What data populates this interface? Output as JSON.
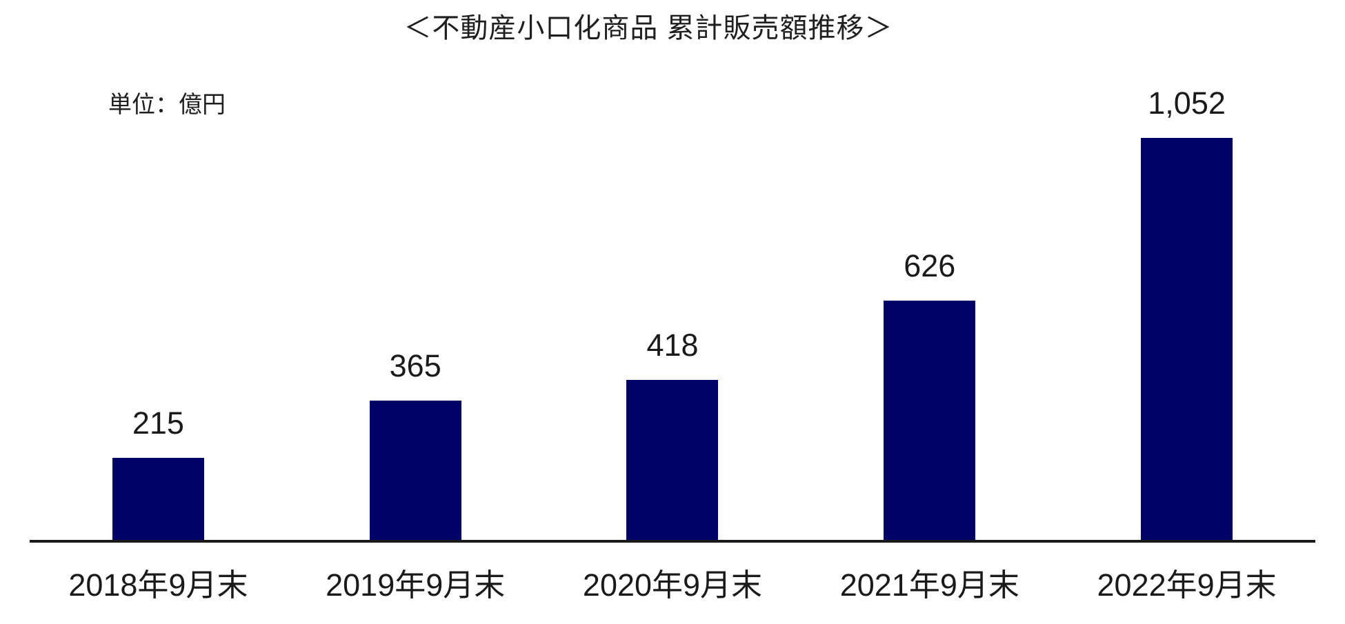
{
  "title": "＜不動産小口化商品 累計販売額推移＞",
  "unit_label": "単位：億円",
  "chart_data": {
    "type": "bar",
    "title": "＜不動産小口化商品 累計販売額推移＞",
    "unit": "億円",
    "categories": [
      "2018年9月末",
      "2019年9月末",
      "2020年9月末",
      "2021年9月末",
      "2022年9月末"
    ],
    "values": [
      215,
      365,
      418,
      626,
      1052
    ],
    "value_labels": [
      "215",
      "365",
      "418",
      "626",
      "1,052"
    ],
    "xlabel": "",
    "ylabel": "単位：億円",
    "ylim": [
      0,
      1100
    ],
    "bar_color": "#000066",
    "text_color": "#1a1a1a",
    "axis_line_color": "#1a1a1a",
    "grid": false,
    "legend_position": "none",
    "data_labels": "above-bars"
  }
}
